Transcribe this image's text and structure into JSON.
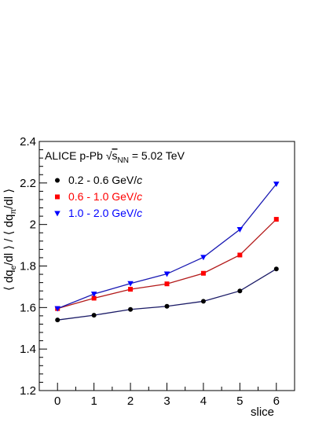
{
  "chart_data": {
    "type": "line",
    "title": "",
    "header": {
      "prefix": "ALICE p-Pb ",
      "sqrt": "√",
      "s": "s",
      "s_sub": "NN",
      "suffix": " = 5.02 TeV"
    },
    "xlabel": "slice",
    "ylabel": {
      "open": "⟨ dq",
      "sub1": "e",
      "mid": "/dl ⟩ / ⟨ dq",
      "sub2": "π",
      "close": "/dl ⟩"
    },
    "x": [
      0,
      1,
      2,
      3,
      4,
      5,
      6
    ],
    "xlim": [
      -0.5,
      6.5
    ],
    "ylim": [
      1.2,
      2.4
    ],
    "xticks": [
      "0",
      "1",
      "2",
      "3",
      "4",
      "5",
      "6"
    ],
    "yticks": [
      "1.2",
      "1.4",
      "1.6",
      "1.8",
      "2",
      "2.2",
      "2.4"
    ],
    "series": [
      {
        "name": "0.2 - 0.6 GeV/c",
        "label_main": "0.2 - 0.6 GeV/",
        "label_unit": "c",
        "color": "#000000",
        "line_color": "#1a1a66",
        "marker": "circle",
        "values": [
          1.54,
          1.563,
          1.591,
          1.606,
          1.63,
          1.68,
          1.786
        ]
      },
      {
        "name": "0.6 - 1.0 GeV/c",
        "label_main": "0.6 - 1.0 GeV/",
        "label_unit": "c",
        "color": "#ff0000",
        "line_color": "#b31a1a",
        "marker": "square",
        "values": [
          1.595,
          1.645,
          1.688,
          1.714,
          1.765,
          1.853,
          2.025
        ]
      },
      {
        "name": "1.0 - 2.0 GeV/c",
        "label_main": "1.0 - 2.0 GeV/",
        "label_unit": "c",
        "color": "#0000ff",
        "line_color": "#1a1ab3",
        "marker": "triangle-down",
        "values": [
          1.595,
          1.665,
          1.716,
          1.762,
          1.842,
          1.976,
          2.195
        ]
      }
    ],
    "grid": false,
    "legend_position": "top-left"
  }
}
